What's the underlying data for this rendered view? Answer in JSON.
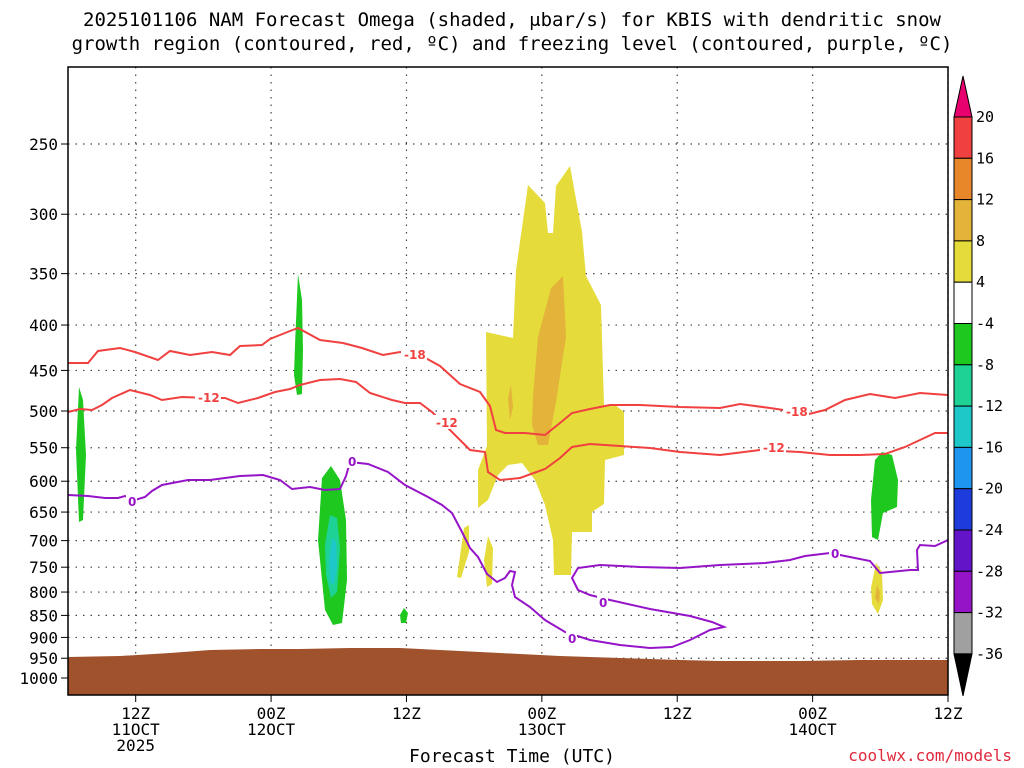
{
  "title": {
    "line1": "2025101106 NAM Forecast Omega (shaded, μbar/s) for KBIS with dendritic snow",
    "line2": "growth region (contoured, red, ºC) and freezing level (contoured, purple, ºC)"
  },
  "chart_data": {
    "type": "heatmap",
    "xlabel": "Forecast Time (UTC)",
    "ylabel": "",
    "y_scale": "log-pressure",
    "ylim": [
      1000,
      200
    ],
    "y_ticks": [
      250,
      300,
      350,
      400,
      450,
      500,
      550,
      600,
      650,
      700,
      750,
      800,
      850,
      900,
      950,
      1000
    ],
    "x_range_hours": [
      "2025-10-11 06Z",
      "2025-10-14 12Z"
    ],
    "x_ticks": [
      {
        "time": "2025-10-11 12Z",
        "lines": [
          "12Z",
          "11OCT",
          "2025"
        ]
      },
      {
        "time": "2025-10-12 00Z",
        "lines": [
          "00Z",
          "12OCT"
        ]
      },
      {
        "time": "2025-10-12 12Z",
        "lines": [
          "12Z"
        ]
      },
      {
        "time": "2025-10-13 00Z",
        "lines": [
          "00Z",
          "13OCT"
        ]
      },
      {
        "time": "2025-10-13 12Z",
        "lines": [
          "12Z"
        ]
      },
      {
        "time": "2025-10-14 00Z",
        "lines": [
          "00Z",
          "14OCT"
        ]
      },
      {
        "time": "2025-10-14 12Z",
        "lines": [
          "12Z"
        ]
      }
    ],
    "grid": true,
    "colorbar": {
      "levels": [
        20,
        16,
        12,
        8,
        4,
        -4,
        -8,
        -12,
        -16,
        -20,
        -24,
        -28,
        -32,
        -36
      ],
      "colors": [
        "#e8006f",
        "#f04040",
        "#e8862a",
        "#e3b33a",
        "#e5dc3b",
        "#ffffff",
        "#1ec81e",
        "#1ed296",
        "#1ec8c8",
        "#1e96f0",
        "#1e3cdc",
        "#6414c8",
        "#9614c8",
        "#a0a0a0",
        "#000000"
      ]
    },
    "contours": {
      "red_labels": [
        "-18",
        "-12",
        "-12",
        "-18",
        "-12",
        "-12",
        "-18"
      ],
      "purple_labels": [
        "0",
        "0",
        "0",
        "0",
        "0"
      ]
    }
  },
  "credit": "coolwx.com/models"
}
